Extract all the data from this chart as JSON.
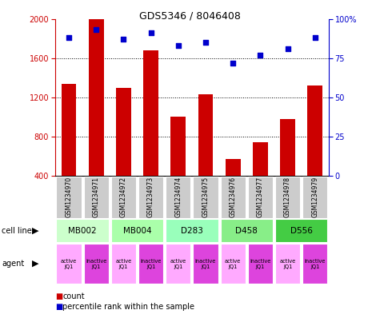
{
  "title": "GDS5346 / 8046408",
  "gsm_labels": [
    "GSM1234970",
    "GSM1234971",
    "GSM1234972",
    "GSM1234973",
    "GSM1234974",
    "GSM1234975",
    "GSM1234976",
    "GSM1234977",
    "GSM1234978",
    "GSM1234979"
  ],
  "counts": [
    1340,
    2000,
    1300,
    1680,
    1000,
    1230,
    570,
    740,
    980,
    1320
  ],
  "percentile_ranks": [
    88,
    93,
    87,
    91,
    83,
    85,
    72,
    77,
    81,
    88
  ],
  "ylim_left": [
    400,
    2000
  ],
  "ylim_right": [
    0,
    100
  ],
  "yticks_left": [
    400,
    800,
    1200,
    1600,
    2000
  ],
  "yticks_right": [
    0,
    25,
    50,
    75,
    100
  ],
  "cell_lines": [
    {
      "label": "MB002",
      "cols": [
        0,
        1
      ],
      "color": "#ccffcc"
    },
    {
      "label": "MB004",
      "cols": [
        2,
        3
      ],
      "color": "#aaffaa"
    },
    {
      "label": "D283",
      "cols": [
        4,
        5
      ],
      "color": "#99ffbb"
    },
    {
      "label": "D458",
      "cols": [
        6,
        7
      ],
      "color": "#88ee88"
    },
    {
      "label": "D556",
      "cols": [
        8,
        9
      ],
      "color": "#44cc44"
    }
  ],
  "agent_active_color": "#ffaaff",
  "agent_inactive_color": "#dd44dd",
  "bar_color": "#cc0000",
  "dot_color": "#0000cc",
  "gsm_bg_color": "#cccccc",
  "title_fontsize": 9,
  "bar_width": 0.55
}
